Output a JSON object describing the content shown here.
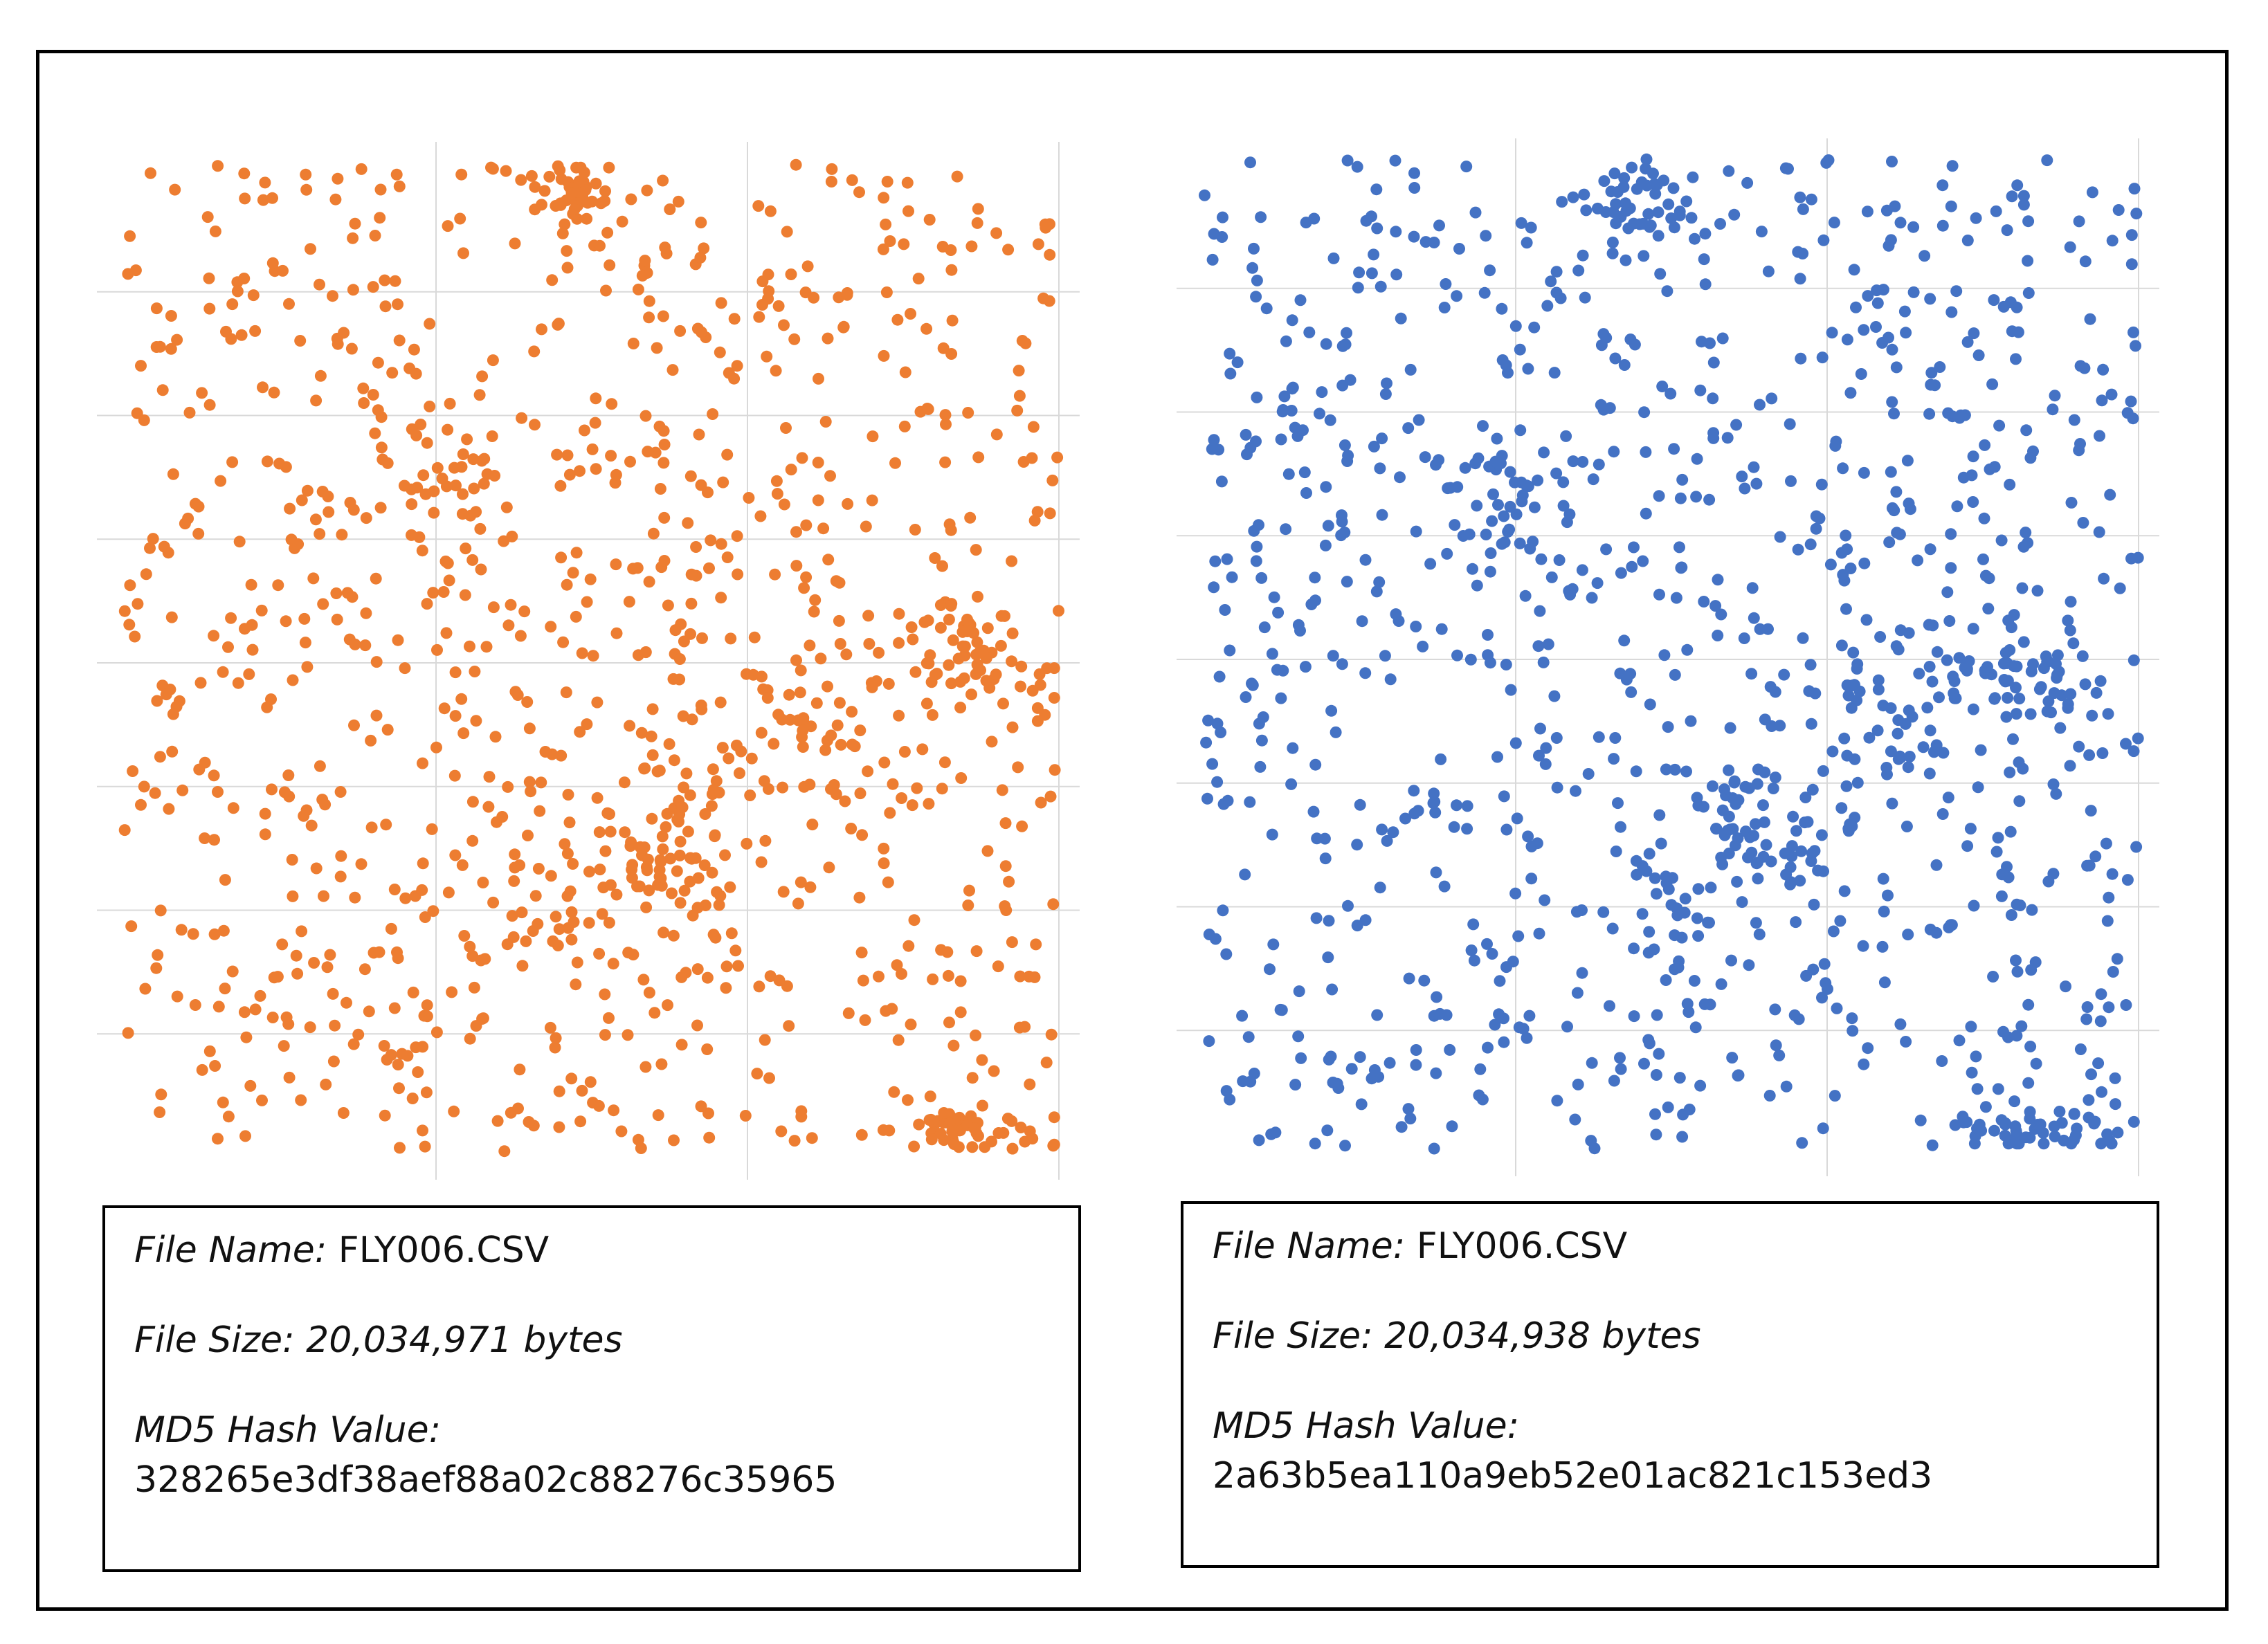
{
  "colors": {
    "left_series": "#ED7D31",
    "right_series": "#4472C4",
    "gridline": "#D9D9D9",
    "frame": "#000000"
  },
  "chart_data": [
    {
      "type": "scatter",
      "title": "",
      "xlabel": "",
      "ylabel": "",
      "xlim": [
        0,
        100
      ],
      "ylim": [
        0,
        100
      ],
      "grid": true,
      "tick_labels_visible": false,
      "marker_color": "#ED7D31",
      "point_count_estimate": 1200,
      "clusters": [
        {
          "cx": 48,
          "cy": 97,
          "sx": 3,
          "sy": 2,
          "n": 40
        },
        {
          "cx": 91,
          "cy": 50,
          "sx": 4,
          "sy": 3,
          "n": 50
        },
        {
          "cx": 59,
          "cy": 31,
          "sx": 4,
          "sy": 4,
          "n": 60
        },
        {
          "cx": 73,
          "cy": 43,
          "sx": 5,
          "sy": 5,
          "n": 50
        },
        {
          "cx": 91,
          "cy": 2,
          "sx": 5,
          "sy": 1.2,
          "n": 45
        },
        {
          "cx": 35,
          "cy": 67,
          "sx": 4,
          "sy": 4,
          "n": 35
        },
        {
          "cx": 47,
          "cy": 22,
          "sx": 3,
          "sy": 3,
          "n": 20
        }
      ]
    },
    {
      "type": "scatter",
      "title": "",
      "xlabel": "",
      "ylabel": "",
      "xlim": [
        0,
        100
      ],
      "ylim": [
        0,
        100
      ],
      "grid": true,
      "tick_labels_visible": false,
      "marker_color": "#4472C4",
      "point_count_estimate": 1200,
      "clusters": [
        {
          "cx": 47,
          "cy": 96,
          "sx": 3,
          "sy": 2,
          "n": 40
        },
        {
          "cx": 88,
          "cy": 48,
          "sx": 4,
          "sy": 3,
          "n": 50
        },
        {
          "cx": 59,
          "cy": 32,
          "sx": 4,
          "sy": 4,
          "n": 60
        },
        {
          "cx": 74,
          "cy": 44,
          "sx": 5,
          "sy": 5,
          "n": 50
        },
        {
          "cx": 91,
          "cy": 2,
          "sx": 5,
          "sy": 1.2,
          "n": 45
        },
        {
          "cx": 33,
          "cy": 65,
          "sx": 4,
          "sy": 4,
          "n": 35
        },
        {
          "cx": 48,
          "cy": 23,
          "sx": 3,
          "sy": 3,
          "n": 20
        }
      ]
    }
  ],
  "left_info": {
    "file_name_label": "File Name:",
    "file_name_value": "FLY006.CSV",
    "file_size": "File Size: 20,034,971 bytes",
    "md5_label": "MD5 Hash Value:",
    "md5_value": "328265e3df38aef88a02c88276c35965"
  },
  "right_info": {
    "file_name_label": "File Name:",
    "file_name_value": "FLY006.CSV",
    "file_size": "File Size: 20,034,938 bytes",
    "md5_label": "MD5 Hash Value:",
    "md5_value": "2a63b5ea110a9eb52e01ac821c153ed3"
  }
}
